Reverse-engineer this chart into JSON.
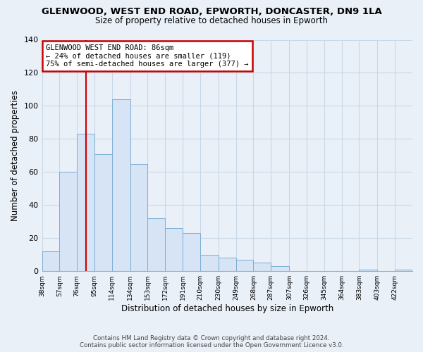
{
  "title1": "GLENWOOD, WEST END ROAD, EPWORTH, DONCASTER, DN9 1LA",
  "title2": "Size of property relative to detached houses in Epworth",
  "xlabel": "Distribution of detached houses by size in Epworth",
  "ylabel": "Number of detached properties",
  "bar_color": "#d6e4f5",
  "bar_edge_color": "#7bafd4",
  "vline_x": 86,
  "vline_color": "#cc0000",
  "categories": [
    "38sqm",
    "57sqm",
    "76sqm",
    "95sqm",
    "114sqm",
    "134sqm",
    "153sqm",
    "172sqm",
    "191sqm",
    "210sqm",
    "230sqm",
    "249sqm",
    "268sqm",
    "287sqm",
    "307sqm",
    "326sqm",
    "345sqm",
    "364sqm",
    "383sqm",
    "403sqm",
    "422sqm"
  ],
  "bin_edges": [
    38,
    57,
    76,
    95,
    114,
    134,
    153,
    172,
    191,
    210,
    230,
    249,
    268,
    287,
    307,
    326,
    345,
    364,
    383,
    403,
    422,
    441
  ],
  "values": [
    12,
    60,
    83,
    71,
    104,
    65,
    32,
    26,
    23,
    10,
    8,
    7,
    5,
    3,
    0,
    0,
    0,
    0,
    1,
    0,
    1
  ],
  "ylim": [
    0,
    140
  ],
  "yticks": [
    0,
    20,
    40,
    60,
    80,
    100,
    120,
    140
  ],
  "annotation_text": "GLENWOOD WEST END ROAD: 86sqm\n← 24% of detached houses are smaller (119)\n75% of semi-detached houses are larger (377) →",
  "annotation_box_color": "#ffffff",
  "annotation_box_edge": "#cc0000",
  "grid_color": "#c8d8e8",
  "bg_color": "#eaf0f8",
  "footnote1": "Contains HM Land Registry data © Crown copyright and database right 2024.",
  "footnote2": "Contains public sector information licensed under the Open Government Licence v3.0."
}
